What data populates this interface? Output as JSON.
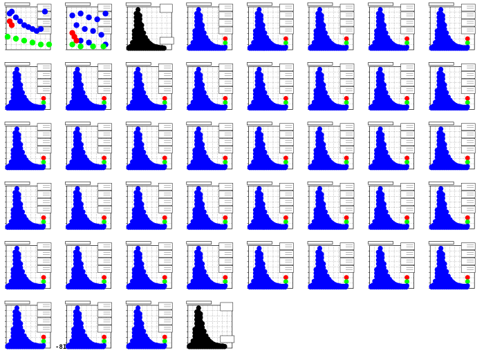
{
  "chart_data": {
    "type": "scatter",
    "grid": true,
    "colors": {
      "blue": "#0000ff",
      "green": "#00ff00",
      "red": "#ff0000",
      "black": "#000000"
    },
    "panels": [
      {
        "kind": "scatter2d",
        "series": [
          {
            "color": "#0000ff",
            "points": [
              [
                0.05,
                0.9
              ],
              [
                0.1,
                0.95
              ],
              [
                0.2,
                0.8
              ],
              [
                0.3,
                0.7
              ],
              [
                0.4,
                0.6
              ],
              [
                0.5,
                0.55
              ],
              [
                0.6,
                0.5
              ],
              [
                0.7,
                0.45
              ],
              [
                0.8,
                0.5
              ],
              [
                0.9,
                0.95
              ]
            ]
          },
          {
            "color": "#00ff00",
            "points": [
              [
                0.0,
                0.3
              ],
              [
                0.2,
                0.25
              ],
              [
                0.4,
                0.2
              ],
              [
                0.6,
                0.15
              ],
              [
                0.8,
                0.1
              ],
              [
                1.0,
                0.1
              ]
            ]
          },
          {
            "color": "#ff0000",
            "points": [
              [
                0.05,
                0.7
              ],
              [
                0.1,
                0.6
              ]
            ]
          }
        ]
      },
      {
        "kind": "scatter2d",
        "series": [
          {
            "color": "#0000ff",
            "points": [
              [
                0.1,
                0.85
              ],
              [
                0.3,
                0.9
              ],
              [
                0.5,
                0.8
              ],
              [
                0.7,
                0.75
              ],
              [
                0.9,
                0.9
              ],
              [
                0.2,
                0.6
              ],
              [
                0.4,
                0.5
              ],
              [
                0.6,
                0.45
              ],
              [
                0.8,
                0.35
              ],
              [
                0.3,
                0.2
              ],
              [
                0.5,
                0.15
              ],
              [
                0.9,
                0.1
              ]
            ]
          },
          {
            "color": "#00ff00",
            "points": [
              [
                0.1,
                0.1
              ],
              [
                0.3,
                0.05
              ],
              [
                0.6,
                0.05
              ],
              [
                0.85,
                0.05
              ]
            ]
          },
          {
            "color": "#ff0000",
            "points": [
              [
                0.1,
                0.4
              ],
              [
                0.15,
                0.3
              ],
              [
                0.2,
                0.2
              ]
            ]
          }
        ]
      },
      {
        "kind": "peak",
        "color": "#000000"
      },
      {
        "kind": "peak-multi"
      },
      {
        "kind": "peak-multi"
      },
      {
        "kind": "peak-multi"
      },
      {
        "kind": "peak-multi"
      },
      {
        "kind": "peak-multi"
      },
      {
        "kind": "peak-multi"
      },
      {
        "kind": "peak-multi"
      },
      {
        "kind": "peak-multi"
      },
      {
        "kind": "peak-multi"
      },
      {
        "kind": "peak-multi"
      },
      {
        "kind": "peak-multi"
      },
      {
        "kind": "peak-multi"
      },
      {
        "kind": "peak-multi"
      },
      {
        "kind": "peak-multi"
      },
      {
        "kind": "peak-multi"
      },
      {
        "kind": "peak-multi"
      },
      {
        "kind": "peak-multi"
      },
      {
        "kind": "peak-multi"
      },
      {
        "kind": "peak-multi"
      },
      {
        "kind": "peak-multi"
      },
      {
        "kind": "peak-multi"
      },
      {
        "kind": "peak-multi"
      },
      {
        "kind": "peak-multi"
      },
      {
        "kind": "peak-multi"
      },
      {
        "kind": "peak-multi"
      },
      {
        "kind": "peak-multi"
      },
      {
        "kind": "peak-multi"
      },
      {
        "kind": "peak-multi"
      },
      {
        "kind": "peak-multi"
      },
      {
        "kind": "peak-multi"
      },
      {
        "kind": "peak-multi"
      },
      {
        "kind": "peak-multi"
      },
      {
        "kind": "peak-multi"
      },
      {
        "kind": "peak-multi"
      },
      {
        "kind": "peak-multi"
      },
      {
        "kind": "peak-multi"
      },
      {
        "kind": "peak-multi"
      },
      {
        "kind": "peak-multi"
      },
      {
        "kind": "peak-multi"
      },
      {
        "kind": "peak-multi"
      },
      {
        "kind": "peak",
        "color": "#000000"
      }
    ],
    "peak_profile": [
      0.02,
      0.05,
      0.15,
      0.45,
      0.9,
      1.0,
      0.85,
      0.6,
      0.4,
      0.28,
      0.2,
      0.14,
      0.1,
      0.07,
      0.05,
      0.04,
      0.03,
      0.02,
      0.02,
      0.01
    ]
  },
  "footer_text": "-8I"
}
